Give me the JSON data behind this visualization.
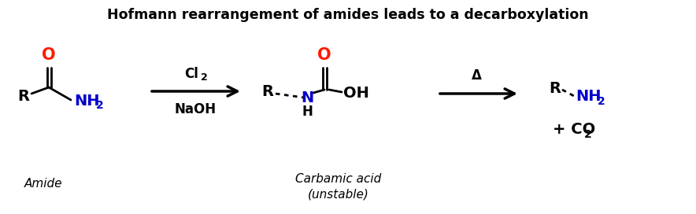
{
  "title": "Hofmann rearrangement of amides leads to a decarboxylation",
  "title_fontsize": 12.5,
  "title_fontweight": "bold",
  "title_color": "#000000",
  "bg_color": "#ffffff",
  "black": "#000000",
  "red": "#ff1a00",
  "blue": "#0000cc",
  "amide_label": "Amide",
  "carbamic_label1": "Carbamic acid",
  "carbamic_label2": "(unstable)",
  "arrow1_above": "Cl",
  "arrow1_above_sub": "2",
  "arrow1_below": "NaOH",
  "arrow2_above": "Δ",
  "fig_w": 8.84,
  "fig_h": 2.72,
  "dpi": 100
}
